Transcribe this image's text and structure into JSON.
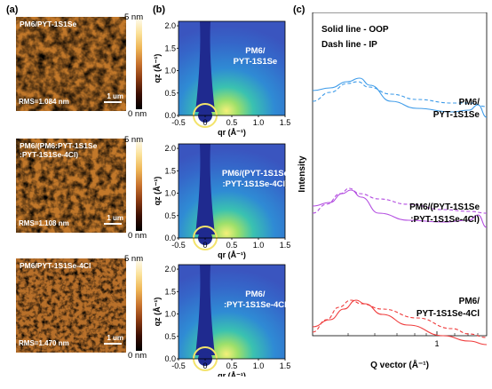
{
  "panel_labels": {
    "a": "(a)",
    "b": "(b)",
    "c": "(c)"
  },
  "afm": [
    {
      "caption": "PM6/PYT-1S1Se",
      "rms": "RMS=1.084 nm",
      "scale": "1 um",
      "cbar_max": "5 nm",
      "cbar_min": "0 nm"
    },
    {
      "caption": "PM6/(PM6:PYT-1S1Se\n:PYT-1S1Se-4Cl)",
      "rms": "RMS=1.108 nm",
      "scale": "1 um",
      "cbar_max": "5 nm",
      "cbar_min": "0 nm"
    },
    {
      "caption": "PM6/PYT-1S1Se-4Cl",
      "rms": "RMS=1.470 nm",
      "scale": "1 um",
      "cbar_max": "5 nm",
      "cbar_min": "0 nm"
    }
  ],
  "giwaxs": {
    "y_ticks": [
      "0.0",
      "0.5",
      "1.0",
      "1.5",
      "2.0"
    ],
    "x_ticks": [
      "-0.5",
      "0",
      "0.5",
      "1.0",
      "1.5"
    ],
    "ylabel": "qz (Å⁻¹)",
    "xlabel": "qr (Å⁻¹)",
    "labels": [
      [
        "PM6/",
        "PYT-1S1Se"
      ],
      [
        "PM6/(PYT-1S1Se",
        ":PYT-1S1Se-4Cl)"
      ],
      [
        "PM6/",
        ":PYT-1S1Se-4Cl"
      ]
    ]
  },
  "profiles": {
    "legend": [
      "Solid line - OOP",
      "Dash line - IP"
    ],
    "ylabel": "Intensity",
    "xlabel": "Q vector (Å⁻¹)",
    "x_tick": "1",
    "curves": [
      {
        "label": [
          "PM6/",
          "PYT-1S1Se"
        ],
        "color": "#3d9be9"
      },
      {
        "label": [
          "PM6/(PYT-1S1Se",
          ":PYT-1S1Se-4Cl)"
        ],
        "color": "#b24be0"
      },
      {
        "label": [
          "PM6/",
          "PYT-1S1Se-4Cl"
        ],
        "color": "#ef3b3b"
      }
    ]
  }
}
